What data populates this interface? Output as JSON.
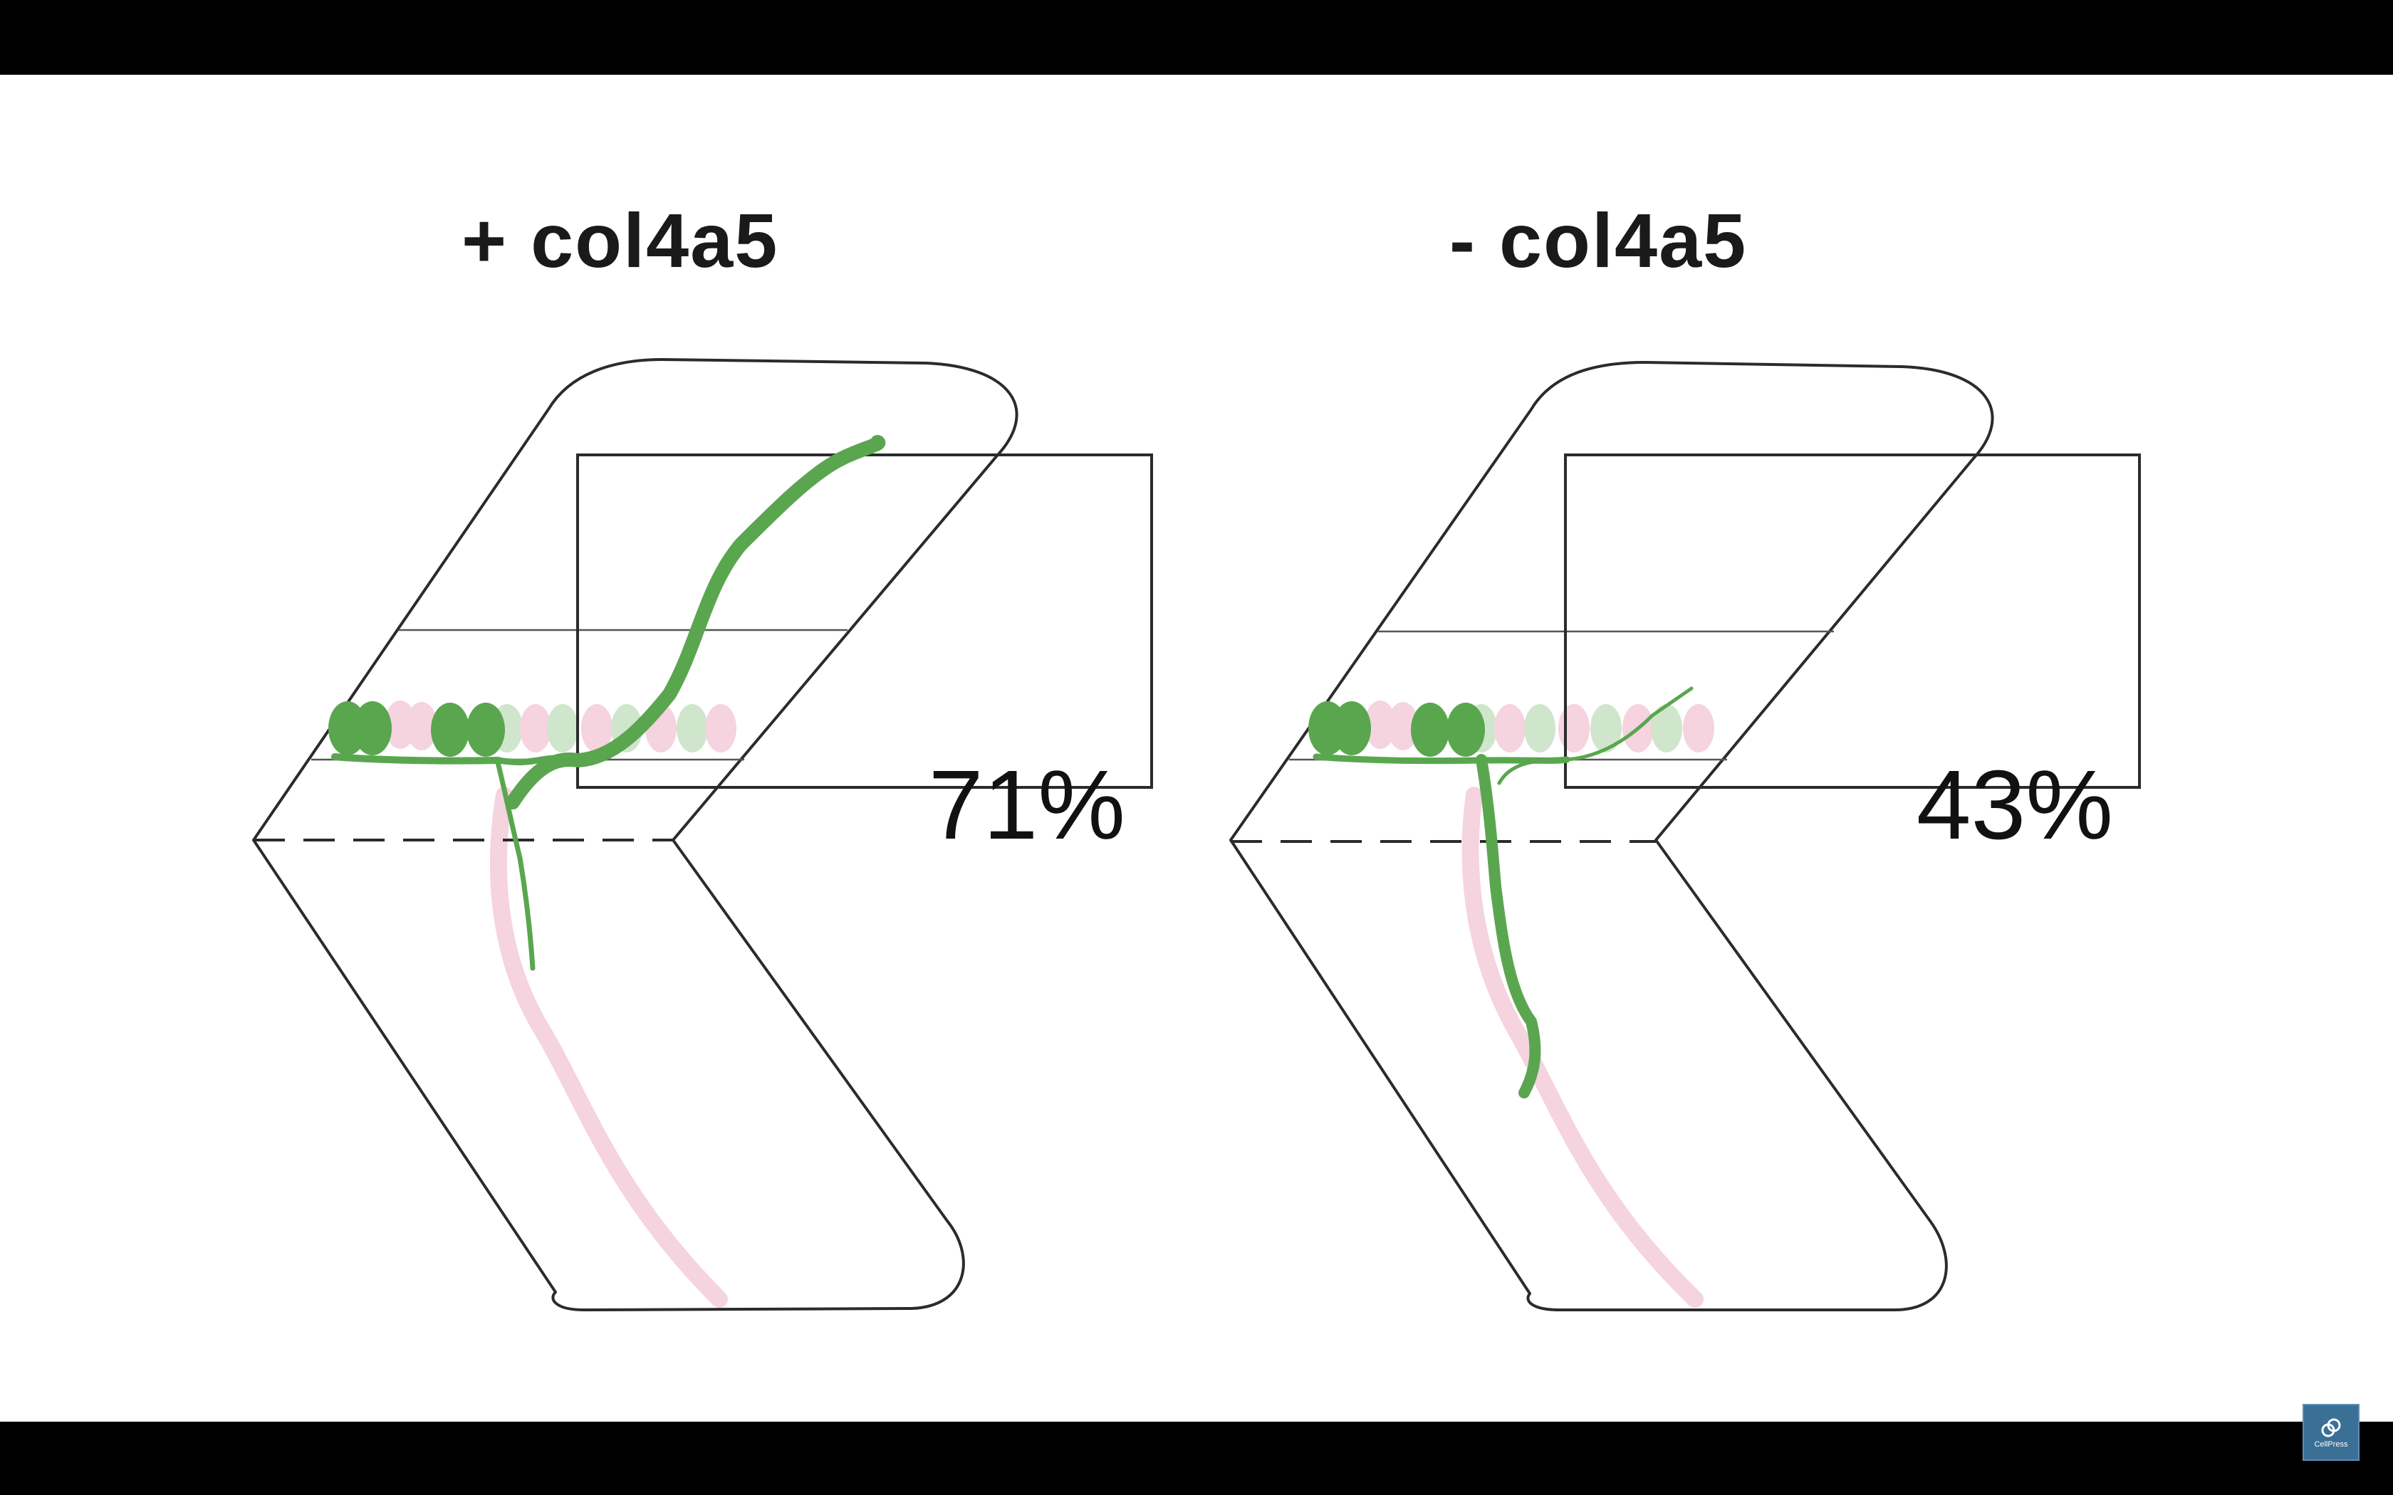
{
  "panels": [
    {
      "title": "+ col4a5",
      "percentage": "71%"
    },
    {
      "title": "- col4a5",
      "percentage": "43%"
    }
  ],
  "logo": {
    "text": "CellPress"
  },
  "colors": {
    "axon_green": "#5aa64f",
    "faded_pink": "#f5d3df",
    "faded_green": "#cfe6cc",
    "outline": "#2b2b2b",
    "frame_bar": "#000000"
  }
}
